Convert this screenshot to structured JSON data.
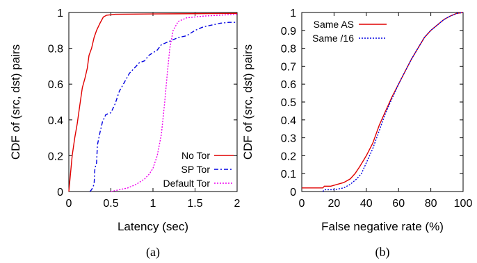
{
  "chart_data": [
    {
      "type": "line",
      "caption": "(a)",
      "xlabel": "Latency (sec)",
      "ylabel": "CDF of (src, dst) pairs",
      "xlim": [
        0,
        2
      ],
      "ylim": [
        0,
        1
      ],
      "xticks": [
        "0",
        "0.5",
        "1",
        "1.5",
        "2"
      ],
      "yticks": [
        "0",
        "0.2",
        "0.4",
        "0.6",
        "0.8",
        "1"
      ],
      "grid": false,
      "legend_position": "bottom-right",
      "series": [
        {
          "name": "No Tor",
          "color": "#e00000",
          "dash": "solid",
          "points": [
            [
              0,
              0
            ],
            [
              0.02,
              0.1
            ],
            [
              0.04,
              0.2
            ],
            [
              0.07,
              0.3
            ],
            [
              0.1,
              0.38
            ],
            [
              0.13,
              0.48
            ],
            [
              0.16,
              0.58
            ],
            [
              0.19,
              0.63
            ],
            [
              0.22,
              0.69
            ],
            [
              0.24,
              0.76
            ],
            [
              0.27,
              0.8
            ],
            [
              0.3,
              0.86
            ],
            [
              0.33,
              0.9
            ],
            [
              0.37,
              0.94
            ],
            [
              0.41,
              0.975
            ],
            [
              0.45,
              0.985
            ],
            [
              0.55,
              0.99
            ],
            [
              1.0,
              0.992
            ],
            [
              2.0,
              0.995
            ]
          ]
        },
        {
          "name": "SP Tor",
          "color": "#0000e0",
          "dash": "6,3,2,3",
          "points": [
            [
              0.25,
              0
            ],
            [
              0.27,
              0.01
            ],
            [
              0.3,
              0.04
            ],
            [
              0.31,
              0.13
            ],
            [
              0.33,
              0.16
            ],
            [
              0.34,
              0.26
            ],
            [
              0.37,
              0.33
            ],
            [
              0.4,
              0.39
            ],
            [
              0.44,
              0.43
            ],
            [
              0.5,
              0.44
            ],
            [
              0.55,
              0.49
            ],
            [
              0.6,
              0.56
            ],
            [
              0.66,
              0.61
            ],
            [
              0.72,
              0.66
            ],
            [
              0.78,
              0.69
            ],
            [
              0.84,
              0.72
            ],
            [
              0.9,
              0.73
            ],
            [
              0.95,
              0.76
            ],
            [
              1.05,
              0.79
            ],
            [
              1.1,
              0.82
            ],
            [
              1.2,
              0.84
            ],
            [
              1.3,
              0.86
            ],
            [
              1.4,
              0.87
            ],
            [
              1.5,
              0.9
            ],
            [
              1.6,
              0.92
            ],
            [
              1.7,
              0.93
            ],
            [
              1.8,
              0.94
            ],
            [
              1.9,
              0.945
            ],
            [
              2.0,
              0.945
            ]
          ]
        },
        {
          "name": "Default Tor",
          "color": "#ee00ee",
          "dash": "2,2",
          "points": [
            [
              0.5,
              0
            ],
            [
              0.6,
              0.01
            ],
            [
              0.7,
              0.02
            ],
            [
              0.8,
              0.04
            ],
            [
              0.9,
              0.07
            ],
            [
              0.96,
              0.1
            ],
            [
              1.0,
              0.13
            ],
            [
              1.05,
              0.2
            ],
            [
              1.1,
              0.32
            ],
            [
              1.14,
              0.5
            ],
            [
              1.17,
              0.66
            ],
            [
              1.2,
              0.8
            ],
            [
              1.24,
              0.9
            ],
            [
              1.3,
              0.95
            ],
            [
              1.4,
              0.97
            ],
            [
              1.6,
              0.98
            ],
            [
              1.8,
              0.985
            ],
            [
              2.0,
              0.99
            ]
          ]
        }
      ]
    },
    {
      "type": "line",
      "caption": "(b)",
      "xlabel": "False negative rate (%)",
      "ylabel": "CDF of (src, dst) pairs",
      "xlim": [
        0,
        100
      ],
      "ylim": [
        0,
        1
      ],
      "xticks": [
        "0",
        "20",
        "40",
        "60",
        "80",
        "100"
      ],
      "yticks": [
        "0",
        "0.1",
        "0.2",
        "0.3",
        "0.4",
        "0.5",
        "0.6",
        "0.7",
        "0.8",
        "0.9",
        "1"
      ],
      "grid": false,
      "legend_position": "top-left",
      "series": [
        {
          "name": "Same AS",
          "color": "#e00000",
          "dash": "solid",
          "points": [
            [
              0,
              0.02
            ],
            [
              13,
              0.02
            ],
            [
              14,
              0.03
            ],
            [
              18,
              0.03
            ],
            [
              22,
              0.04
            ],
            [
              26,
              0.05
            ],
            [
              30,
              0.07
            ],
            [
              33,
              0.1
            ],
            [
              36,
              0.14
            ],
            [
              40,
              0.2
            ],
            [
              44,
              0.27
            ],
            [
              48,
              0.37
            ],
            [
              52,
              0.45
            ],
            [
              56,
              0.53
            ],
            [
              60,
              0.6
            ],
            [
              64,
              0.67
            ],
            [
              68,
              0.74
            ],
            [
              72,
              0.8
            ],
            [
              76,
              0.86
            ],
            [
              80,
              0.9
            ],
            [
              84,
              0.93
            ],
            [
              88,
              0.96
            ],
            [
              92,
              0.98
            ],
            [
              96,
              0.995
            ],
            [
              100,
              1.0
            ]
          ]
        },
        {
          "name": "Same /16",
          "color": "#0000e0",
          "dash": "2,2",
          "points": [
            [
              13,
              0
            ],
            [
              14,
              0.01
            ],
            [
              20,
              0.01
            ],
            [
              26,
              0.02
            ],
            [
              30,
              0.04
            ],
            [
              34,
              0.07
            ],
            [
              37,
              0.1
            ],
            [
              40,
              0.16
            ],
            [
              44,
              0.24
            ],
            [
              48,
              0.34
            ],
            [
              52,
              0.44
            ],
            [
              56,
              0.52
            ],
            [
              60,
              0.6
            ],
            [
              64,
              0.67
            ],
            [
              68,
              0.74
            ],
            [
              72,
              0.8
            ],
            [
              76,
              0.86
            ],
            [
              80,
              0.9
            ],
            [
              84,
              0.93
            ],
            [
              88,
              0.96
            ],
            [
              92,
              0.98
            ],
            [
              96,
              0.995
            ],
            [
              100,
              1.0
            ]
          ]
        }
      ]
    }
  ]
}
